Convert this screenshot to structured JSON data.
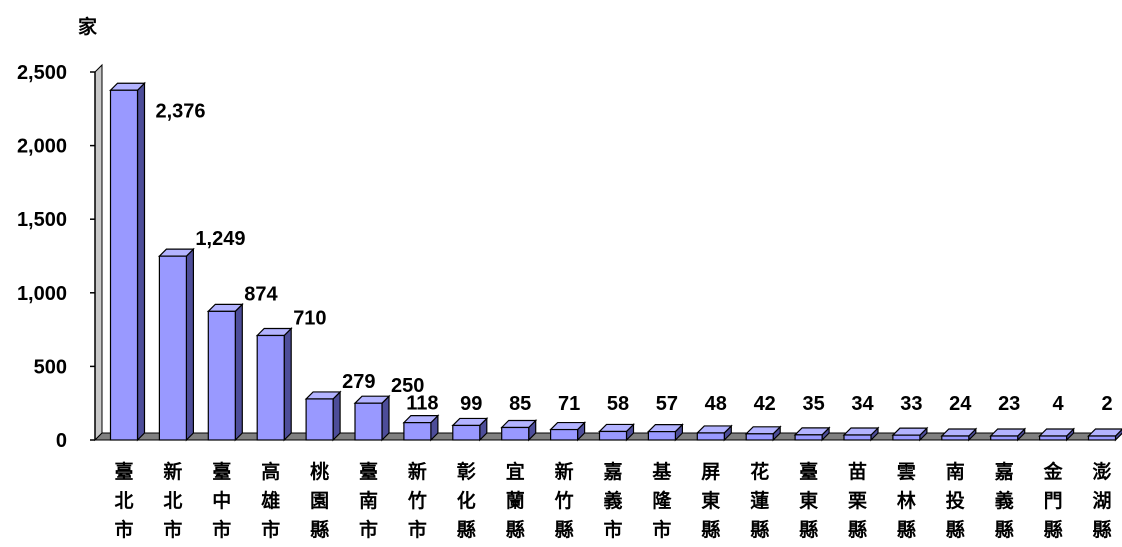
{
  "chart_data": {
    "type": "bar",
    "ylabel": "家",
    "ylim": [
      0,
      2500
    ],
    "yticks": [
      "0",
      "500",
      "1,000",
      "1,500",
      "2,000",
      "2,500"
    ],
    "grid": false,
    "legend": "none",
    "bar_color": "#9999FF",
    "categories": [
      "臺北市",
      "新北市",
      "臺中市",
      "高雄市",
      "桃園縣",
      "臺南市",
      "新竹市",
      "彰化縣",
      "宜蘭縣",
      "新竹縣",
      "嘉義市",
      "基隆市",
      "屏東縣",
      "花蓮縣",
      "臺東縣",
      "苗栗縣",
      "雲林縣",
      "南投縣",
      "嘉義縣",
      "金門縣",
      "澎湖縣"
    ],
    "values": [
      2376,
      1249,
      874,
      710,
      279,
      250,
      118,
      99,
      85,
      71,
      58,
      57,
      48,
      42,
      35,
      34,
      33,
      24,
      23,
      4,
      2
    ],
    "value_labels": [
      "2,376",
      "1,249",
      "874",
      "710",
      "279",
      "250",
      "118",
      "99",
      "85",
      "71",
      "58",
      "57",
      "48",
      "42",
      "35",
      "34",
      "33",
      "24",
      "23",
      "4",
      "2"
    ]
  }
}
